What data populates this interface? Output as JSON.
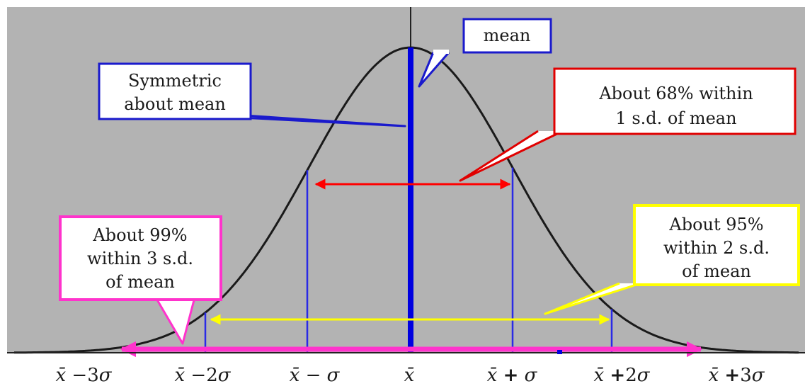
{
  "callouts": {
    "mean": "mean",
    "symmetric": [
      "Symmetric",
      "about mean"
    ],
    "sd1": [
      "About 68% within",
      "1 s.d. of mean"
    ],
    "sd2": [
      "About 95%",
      "within 2 s.d.",
      "of mean"
    ],
    "sd3": [
      "About 99%",
      "within 3 s.d.",
      "of mean"
    ]
  },
  "colors": {
    "background": "#b3b3b3",
    "curve": "#1a1a1a",
    "mean_line": "#0000e0",
    "sd_lines": "#2a2ae6",
    "arrow_1sd": "#ff0000",
    "arrow_2sd": "#ffff00",
    "arrow_3sd": "#ff33cc",
    "callout_mean_border": "#1a1acc",
    "callout_symmetric_border": "#1a1acc",
    "callout_1sd_border": "#e00000",
    "callout_2sd_border": "#ffff00",
    "callout_3sd_border": "#ff33cc"
  },
  "axis": {
    "ticks": [
      {
        "base": "x̄",
        "op": "−",
        "mult": "3",
        "sigma": "σ",
        "k": -3
      },
      {
        "base": "x̄",
        "op": "−",
        "mult": "2",
        "sigma": "σ",
        "k": -2
      },
      {
        "base": "x̄",
        "op": "−",
        "mult": "",
        "sigma": "σ",
        "k": -1
      },
      {
        "base": "x̄",
        "op": "",
        "mult": "",
        "sigma": "",
        "k": 0
      },
      {
        "base": "x̄",
        "op": "+",
        "mult": "",
        "sigma": "σ",
        "k": 1
      },
      {
        "base": "x̄",
        "op": "+",
        "mult": "2",
        "sigma": "σ",
        "k": 2
      },
      {
        "base": "x̄",
        "op": "+",
        "mult": "3",
        "sigma": "σ",
        "k": 3
      }
    ]
  }
}
